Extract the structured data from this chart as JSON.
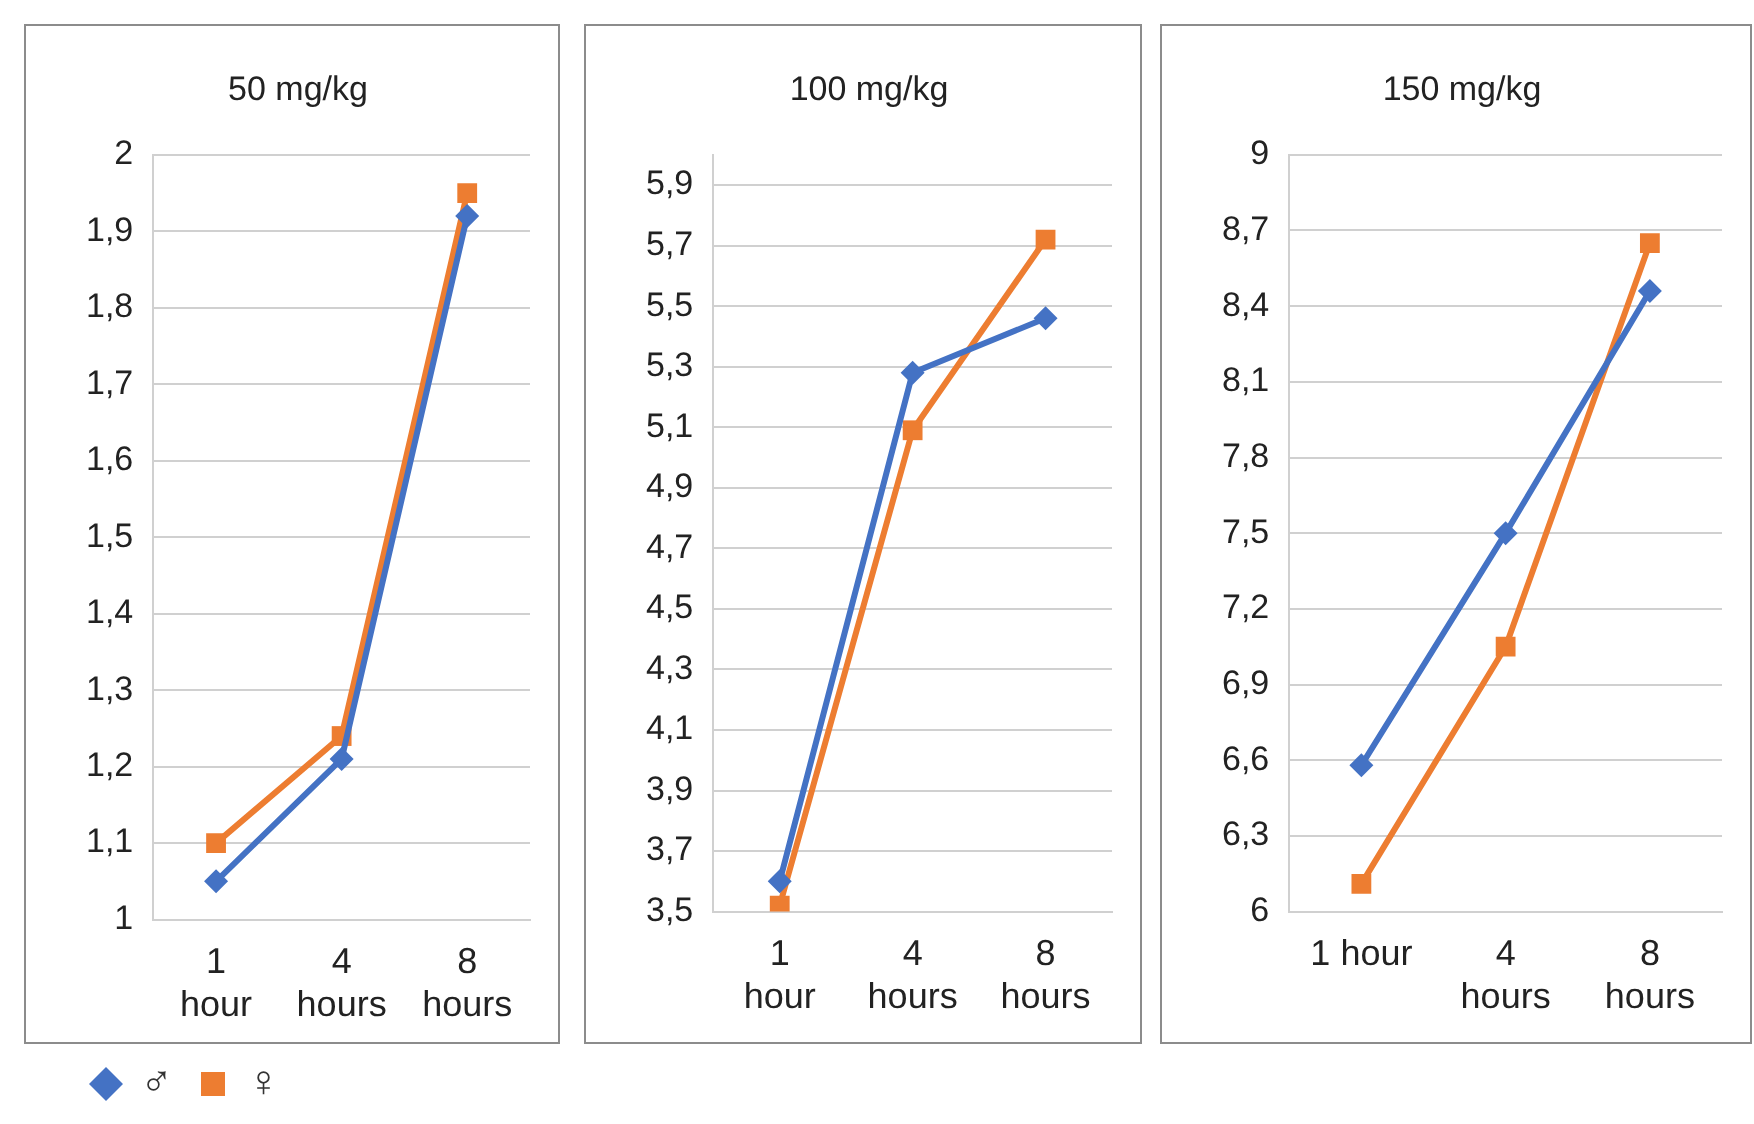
{
  "chart_data": [
    {
      "type": "line",
      "title": "50 mg/kg",
      "categories": [
        "1 hour",
        "4 hours",
        "8 hours"
      ],
      "ylim": [
        1,
        2
      ],
      "yticks": [
        1,
        {
          "value": 1.1,
          "label": "1,1"
        },
        {
          "value": 1.2,
          "label": "1,2"
        },
        {
          "value": 1.3,
          "label": "1,3"
        },
        {
          "value": 1.4,
          "label": "1,4"
        },
        {
          "value": 1.5,
          "label": "1,5"
        },
        {
          "value": 1.6,
          "label": "1,6"
        },
        {
          "value": 1.7,
          "label": "1,7"
        },
        {
          "value": 1.8,
          "label": "1,8"
        },
        {
          "value": 1.9,
          "label": "1,9"
        },
        2
      ],
      "grid": "y",
      "legend": "bottom",
      "series": [
        {
          "name": "♂",
          "color": "#4472c4",
          "marker": "diamond",
          "values": [
            1.05,
            1.21,
            1.92
          ]
        },
        {
          "name": "♀",
          "color": "#ed7d31",
          "marker": "square",
          "values": [
            1.1,
            1.24,
            1.95
          ]
        }
      ]
    },
    {
      "type": "line",
      "title": "100 mg/kg",
      "categories": [
        "1 hour",
        "4 hours",
        "8 hours"
      ],
      "ylim": [
        3.5,
        6
      ],
      "yticks": [
        {
          "value": 3.5,
          "label": "3,5"
        },
        {
          "value": 3.7,
          "label": "3,7"
        },
        {
          "value": 3.9,
          "label": "3,9"
        },
        {
          "value": 4.1,
          "label": "4,1"
        },
        {
          "value": 4.3,
          "label": "4,3"
        },
        {
          "value": 4.5,
          "label": "4,5"
        },
        {
          "value": 4.7,
          "label": "4,7"
        },
        {
          "value": 4.9,
          "label": "4,9"
        },
        {
          "value": 5.1,
          "label": "5,1"
        },
        {
          "value": 5.3,
          "label": "5,3"
        },
        {
          "value": 5.5,
          "label": "5,5"
        },
        {
          "value": 5.7,
          "label": "5,7"
        },
        {
          "value": 5.9,
          "label": "5,9"
        }
      ],
      "grid": "y",
      "series": [
        {
          "color": "#4472c4",
          "marker": "diamond",
          "values": [
            3.6,
            5.28,
            5.46
          ]
        },
        {
          "color": "#ed7d31",
          "marker": "square",
          "values": [
            3.52,
            5.09,
            5.72
          ]
        }
      ]
    },
    {
      "type": "line",
      "title": "150 mg/kg",
      "categories": [
        "1 hour",
        "4 hours",
        "8 hours"
      ],
      "ylim": [
        6,
        9
      ],
      "yticks": [
        6,
        {
          "value": 6.3,
          "label": "6,3"
        },
        {
          "value": 6.6,
          "label": "6,6"
        },
        {
          "value": 6.9,
          "label": "6,9"
        },
        {
          "value": 7.2,
          "label": "7,2"
        },
        {
          "value": 7.5,
          "label": "7,5"
        },
        {
          "value": 7.8,
          "label": "7,8"
        },
        {
          "value": 8.1,
          "label": "8,1"
        },
        {
          "value": 8.4,
          "label": "8,4"
        },
        {
          "value": 8.7,
          "label": "8,7"
        },
        9
      ],
      "grid": "y",
      "series": [
        {
          "color": "#4472c4",
          "marker": "diamond",
          "values": [
            6.58,
            7.5,
            8.46
          ]
        },
        {
          "color": "#ed7d31",
          "marker": "square",
          "values": [
            6.11,
            7.05,
            8.65
          ]
        }
      ]
    }
  ]
}
